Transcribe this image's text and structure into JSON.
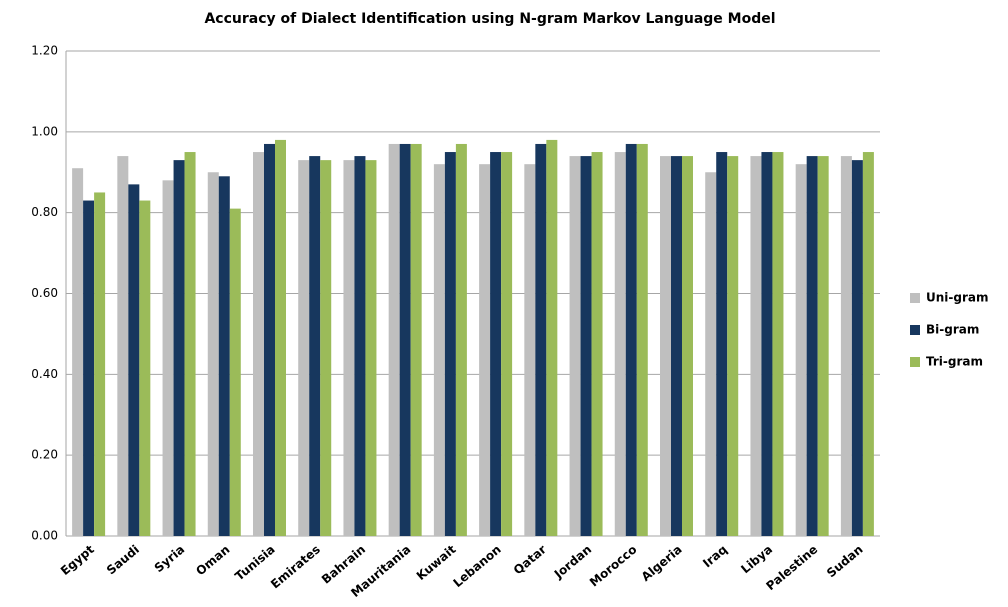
{
  "chart_data": {
    "type": "bar",
    "title": "Accuracy of Dialect Identification using N-gram Markov Language Model",
    "categories": [
      "Egypt",
      "Saudi",
      "Syria",
      "Oman",
      "Tunisia",
      "Emirates",
      "Bahrain",
      "Mauritania",
      "Kuwait",
      "Lebanon",
      "Qatar",
      "Jordan",
      "Morocco",
      "Algeria",
      "Iraq",
      "Libya",
      "Palestine",
      "Sudan"
    ],
    "series": [
      {
        "name": "Uni-gram",
        "color": "#bfbfbf",
        "values": [
          0.91,
          0.94,
          0.88,
          0.9,
          0.95,
          0.93,
          0.93,
          0.97,
          0.92,
          0.92,
          0.92,
          0.94,
          0.95,
          0.94,
          0.9,
          0.94,
          0.92,
          0.94
        ]
      },
      {
        "name": "Bi-gram",
        "color": "#17375e",
        "values": [
          0.83,
          0.87,
          0.93,
          0.89,
          0.97,
          0.94,
          0.94,
          0.97,
          0.95,
          0.95,
          0.97,
          0.94,
          0.97,
          0.94,
          0.95,
          0.95,
          0.94,
          0.93
        ]
      },
      {
        "name": "Tri-gram",
        "color": "#9bbb59",
        "values": [
          0.85,
          0.83,
          0.95,
          0.81,
          0.98,
          0.93,
          0.93,
          0.97,
          0.97,
          0.95,
          0.98,
          0.95,
          0.97,
          0.94,
          0.94,
          0.95,
          0.94,
          0.95
        ]
      }
    ],
    "ylim": [
      0,
      1.2
    ],
    "yticks": [
      {
        "value": 0,
        "label": "0.00"
      },
      {
        "value": 0.2,
        "label": "0.20"
      },
      {
        "value": 0.4,
        "label": "0.40"
      },
      {
        "value": 0.6,
        "label": "0.60"
      },
      {
        "value": 0.8,
        "label": "0.80"
      },
      {
        "value": 1,
        "label": "1.00"
      },
      {
        "value": 1.2,
        "label": "1.20"
      }
    ],
    "grid": true,
    "legend": "right"
  }
}
